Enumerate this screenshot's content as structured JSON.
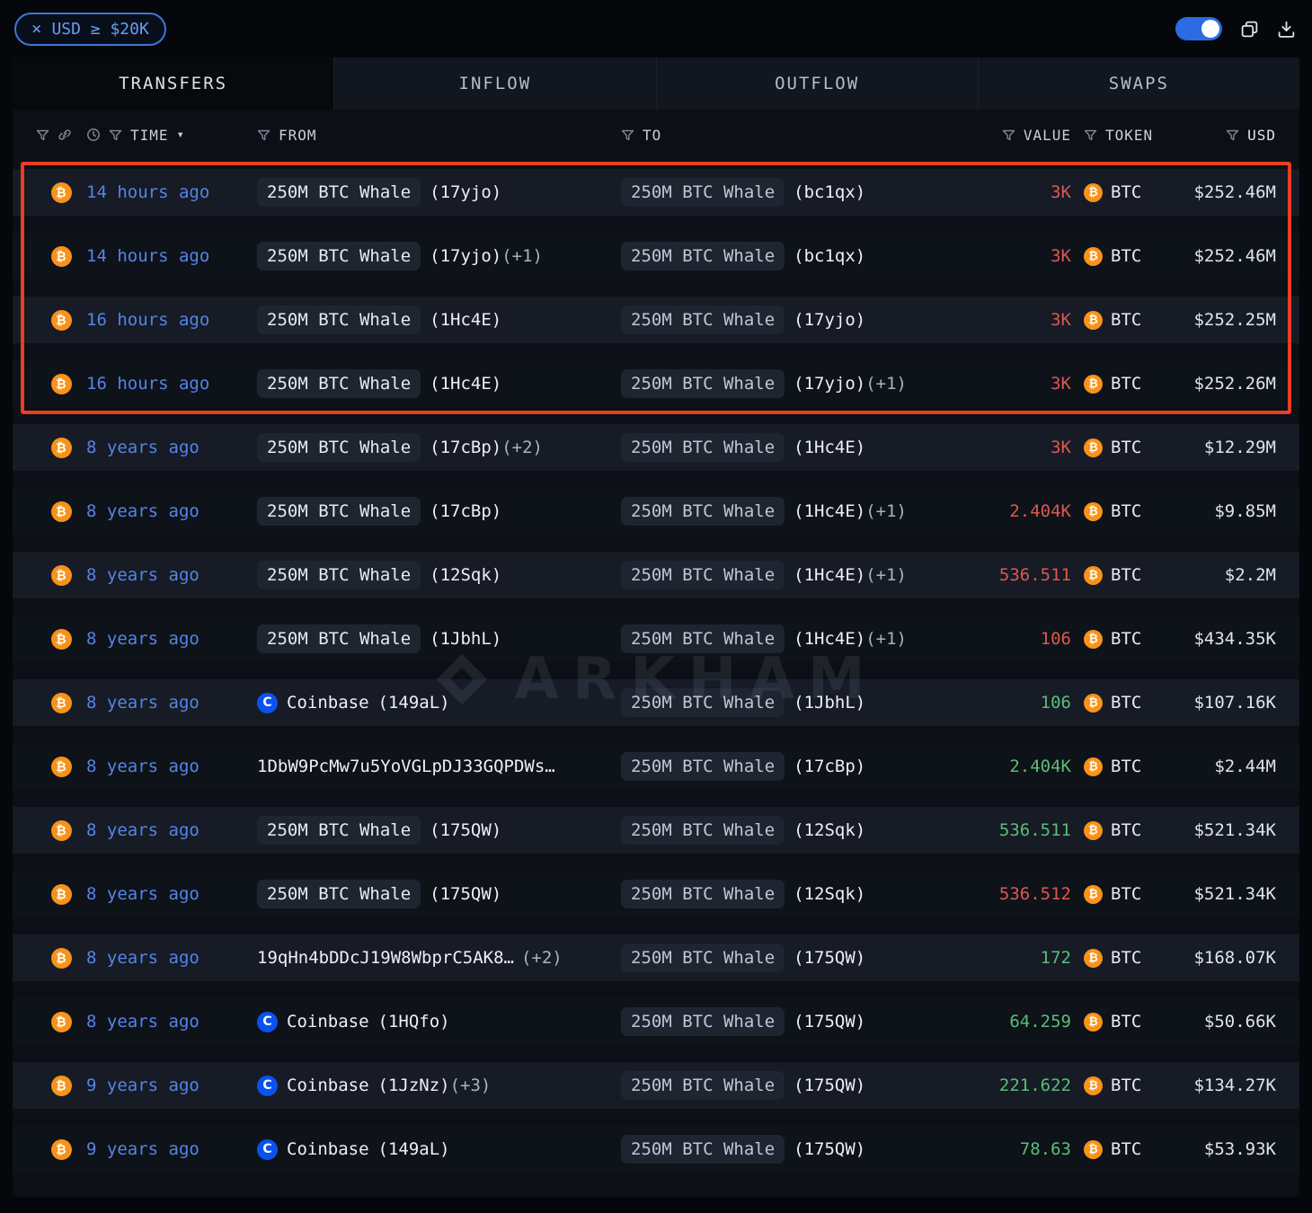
{
  "topbar": {
    "filter_close": "×",
    "filter_label": "USD ≥ $20K"
  },
  "tabs": [
    {
      "label": "TRANSFERS",
      "active": true
    },
    {
      "label": "INFLOW",
      "active": false
    },
    {
      "label": "OUTFLOW",
      "active": false
    },
    {
      "label": "SWAPS",
      "active": false
    }
  ],
  "columns": {
    "time": "TIME",
    "from": "FROM",
    "to": "TO",
    "value": "VALUE",
    "token": "TOKEN",
    "usd": "USD"
  },
  "icons": {
    "btc_symbol": "₿",
    "coinbase_symbol": "C",
    "caret": "▾"
  },
  "watermark": "ARKHAM",
  "rows": [
    {
      "time": "14 hours ago",
      "from": {
        "type": "whale",
        "name": "250M BTC Whale",
        "addr": "(17yjo)",
        "extra": ""
      },
      "to": {
        "type": "whale",
        "name": "250M BTC Whale",
        "addr": "(bc1qx)",
        "extra": ""
      },
      "value": "3K",
      "value_color": "red",
      "token": "BTC",
      "usd": "$252.46M",
      "highlight": true
    },
    {
      "time": "14 hours ago",
      "from": {
        "type": "whale",
        "name": "250M BTC Whale",
        "addr": "(17yjo)",
        "extra": "(+1)"
      },
      "to": {
        "type": "whale",
        "name": "250M BTC Whale",
        "addr": "(bc1qx)",
        "extra": ""
      },
      "value": "3K",
      "value_color": "red",
      "token": "BTC",
      "usd": "$252.46M",
      "highlight": true
    },
    {
      "time": "16 hours ago",
      "from": {
        "type": "whale",
        "name": "250M BTC Whale",
        "addr": "(1Hc4E)",
        "extra": ""
      },
      "to": {
        "type": "whale",
        "name": "250M BTC Whale",
        "addr": "(17yjo)",
        "extra": ""
      },
      "value": "3K",
      "value_color": "red",
      "token": "BTC",
      "usd": "$252.25M",
      "highlight": true
    },
    {
      "time": "16 hours ago",
      "from": {
        "type": "whale",
        "name": "250M BTC Whale",
        "addr": "(1Hc4E)",
        "extra": ""
      },
      "to": {
        "type": "whale",
        "name": "250M BTC Whale",
        "addr": "(17yjo)",
        "extra": "(+1)"
      },
      "value": "3K",
      "value_color": "red",
      "token": "BTC",
      "usd": "$252.26M",
      "highlight": true
    },
    {
      "time": "8 years ago",
      "from": {
        "type": "whale",
        "name": "250M BTC Whale",
        "addr": "(17cBp)",
        "extra": "(+2)"
      },
      "to": {
        "type": "whale",
        "name": "250M BTC Whale",
        "addr": "(1Hc4E)",
        "extra": ""
      },
      "value": "3K",
      "value_color": "red",
      "token": "BTC",
      "usd": "$12.29M",
      "highlight": false
    },
    {
      "time": "8 years ago",
      "from": {
        "type": "whale",
        "name": "250M BTC Whale",
        "addr": "(17cBp)",
        "extra": ""
      },
      "to": {
        "type": "whale",
        "name": "250M BTC Whale",
        "addr": "(1Hc4E)",
        "extra": "(+1)"
      },
      "value": "2.404K",
      "value_color": "red",
      "token": "BTC",
      "usd": "$9.85M",
      "highlight": false
    },
    {
      "time": "8 years ago",
      "from": {
        "type": "whale",
        "name": "250M BTC Whale",
        "addr": "(12Sqk)",
        "extra": ""
      },
      "to": {
        "type": "whale",
        "name": "250M BTC Whale",
        "addr": "(1Hc4E)",
        "extra": "(+1)"
      },
      "value": "536.511",
      "value_color": "red",
      "token": "BTC",
      "usd": "$2.2M",
      "highlight": false
    },
    {
      "time": "8 years ago",
      "from": {
        "type": "whale",
        "name": "250M BTC Whale",
        "addr": "(1JbhL)",
        "extra": ""
      },
      "to": {
        "type": "whale",
        "name": "250M BTC Whale",
        "addr": "(1Hc4E)",
        "extra": "(+1)"
      },
      "value": "106",
      "value_color": "red",
      "token": "BTC",
      "usd": "$434.35K",
      "highlight": false
    },
    {
      "time": "8 years ago",
      "from": {
        "type": "coinbase",
        "name": "Coinbase",
        "addr": "(149aL)",
        "extra": ""
      },
      "to": {
        "type": "whale",
        "name": "250M BTC Whale",
        "addr": "(1JbhL)",
        "extra": ""
      },
      "value": "106",
      "value_color": "green",
      "token": "BTC",
      "usd": "$107.16K",
      "highlight": false
    },
    {
      "time": "8 years ago",
      "from": {
        "type": "address",
        "name": "1DbW9PcMw7u5YoVGLpDJ33GQPDWs…",
        "addr": "",
        "extra": ""
      },
      "to": {
        "type": "whale",
        "name": "250M BTC Whale",
        "addr": "(17cBp)",
        "extra": ""
      },
      "value": "2.404K",
      "value_color": "green",
      "token": "BTC",
      "usd": "$2.44M",
      "highlight": false
    },
    {
      "time": "8 years ago",
      "from": {
        "type": "whale",
        "name": "250M BTC Whale",
        "addr": "(175QW)",
        "extra": ""
      },
      "to": {
        "type": "whale",
        "name": "250M BTC Whale",
        "addr": "(12Sqk)",
        "extra": ""
      },
      "value": "536.511",
      "value_color": "green",
      "token": "BTC",
      "usd": "$521.34K",
      "highlight": false
    },
    {
      "time": "8 years ago",
      "from": {
        "type": "whale",
        "name": "250M BTC Whale",
        "addr": "(175QW)",
        "extra": ""
      },
      "to": {
        "type": "whale",
        "name": "250M BTC Whale",
        "addr": "(12Sqk)",
        "extra": ""
      },
      "value": "536.512",
      "value_color": "red",
      "token": "BTC",
      "usd": "$521.34K",
      "highlight": false
    },
    {
      "time": "8 years ago",
      "from": {
        "type": "address",
        "name": "19qHn4bDDcJ19W8WbprC5AK8…",
        "addr": "",
        "extra": "(+2)"
      },
      "to": {
        "type": "whale",
        "name": "250M BTC Whale",
        "addr": "(175QW)",
        "extra": ""
      },
      "value": "172",
      "value_color": "green",
      "token": "BTC",
      "usd": "$168.07K",
      "highlight": false
    },
    {
      "time": "8 years ago",
      "from": {
        "type": "coinbase",
        "name": "Coinbase",
        "addr": "(1HQfo)",
        "extra": ""
      },
      "to": {
        "type": "whale",
        "name": "250M BTC Whale",
        "addr": "(175QW)",
        "extra": ""
      },
      "value": "64.259",
      "value_color": "green",
      "token": "BTC",
      "usd": "$50.66K",
      "highlight": false
    },
    {
      "time": "9 years ago",
      "from": {
        "type": "coinbase",
        "name": "Coinbase",
        "addr": "(1JzNz)",
        "extra": "(+3)"
      },
      "to": {
        "type": "whale",
        "name": "250M BTC Whale",
        "addr": "(175QW)",
        "extra": ""
      },
      "value": "221.622",
      "value_color": "green",
      "token": "BTC",
      "usd": "$134.27K",
      "highlight": false
    },
    {
      "time": "9 years ago",
      "from": {
        "type": "coinbase",
        "name": "Coinbase",
        "addr": "(149aL)",
        "extra": ""
      },
      "to": {
        "type": "whale",
        "name": "250M BTC Whale",
        "addr": "(175QW)",
        "extra": ""
      },
      "value": "78.63",
      "value_color": "green",
      "token": "BTC",
      "usd": "$53.93K",
      "highlight": false
    }
  ]
}
